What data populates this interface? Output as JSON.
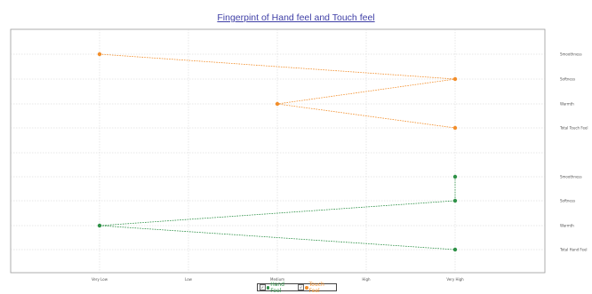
{
  "chart_data": {
    "type": "scatter",
    "title": "Fingerpint of Hand feel and Touch feel",
    "x_levels": [
      "Very Low",
      "Low",
      "Medium",
      "High",
      "Very High"
    ],
    "y_labels": [
      "Smoothness",
      "Softness",
      "Warmth",
      "Total Touch Feel",
      "Smoothness",
      "Softness",
      "Warmth",
      "Total Hand Feel"
    ],
    "series": [
      {
        "name": "Touch Feel",
        "color": "#f28e2b",
        "points": [
          {
            "y": "Smoothness",
            "x": "Very Low"
          },
          {
            "y": "Softness",
            "x": "Very High"
          },
          {
            "y": "Warmth",
            "x": "Medium"
          },
          {
            "y": "Total Touch Feel",
            "x": "Very High"
          }
        ]
      },
      {
        "name": "Hand Feel",
        "color": "#2e9147",
        "points": [
          {
            "y": "Smoothness",
            "x": "Very High"
          },
          {
            "y": "Softness",
            "x": "Very High"
          },
          {
            "y": "Warmth",
            "x": "Very Low"
          },
          {
            "y": "Total Hand Feel",
            "x": "Very High"
          }
        ]
      }
    ],
    "grid": true,
    "legend_position": "bottom"
  },
  "legend": {
    "hand_label": "Hand Feel",
    "touch_label": "Touch Feel",
    "check_mark": "✓"
  }
}
